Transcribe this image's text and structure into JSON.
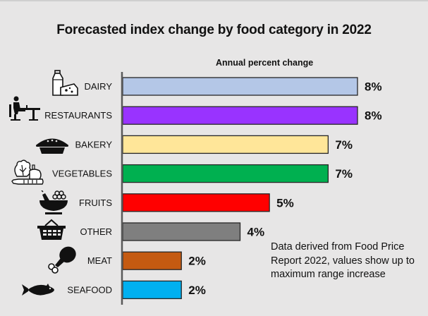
{
  "chart_data": {
    "type": "bar",
    "orientation": "horizontal",
    "title": "Forecasted index change by food category in 2022",
    "subtitle": "Annual percent change",
    "xlabel": "",
    "ylabel": "",
    "xlim": [
      0,
      8
    ],
    "grid": false,
    "categories": [
      "DAIRY",
      "RESTAURANTS",
      "BAKERY",
      "VEGETABLES",
      "FRUITS",
      "OTHER",
      "MEAT",
      "SEAFOOD"
    ],
    "values": [
      8,
      8,
      7,
      7,
      5,
      4,
      2,
      2
    ],
    "value_labels": [
      "8%",
      "8%",
      "7%",
      "7%",
      "5%",
      "4%",
      "2%",
      "2%"
    ],
    "colors": [
      "#b4c7e7",
      "#9933ff",
      "#ffe699",
      "#00b050",
      "#ff0000",
      "#7f7f7f",
      "#c55a11",
      "#00b0f0"
    ],
    "icons": [
      "milk-cheese-icon",
      "restaurant-diner-icon",
      "pie-icon",
      "vegetables-icon",
      "fruit-bowl-icon",
      "basket-icon",
      "drumstick-icon",
      "fish-icon"
    ],
    "annotation": "Data derived from Food Price Report 2022, values show up to maximum range increase"
  }
}
